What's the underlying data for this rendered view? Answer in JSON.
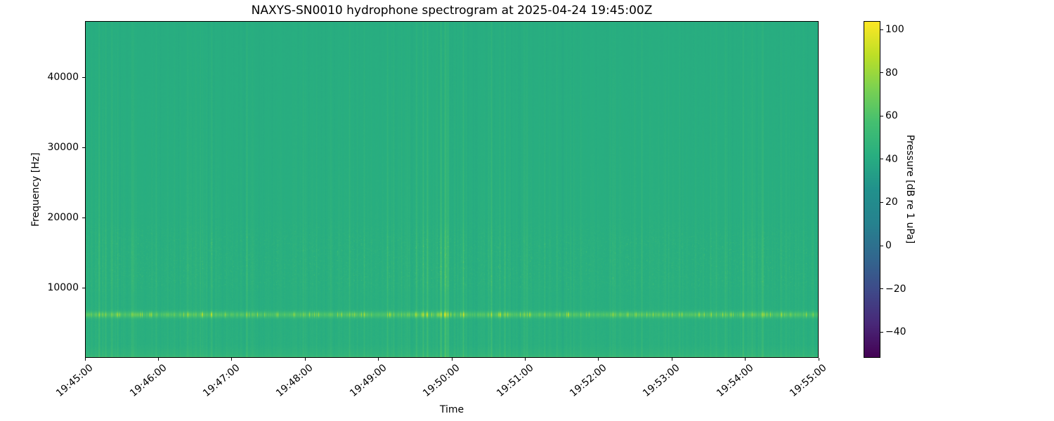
{
  "figure": {
    "title": "NAXYS-SN0010 hydrophone spectrogram at 2025-04-24 19:45:00Z",
    "xlabel": "Time",
    "ylabel": "Frequency [Hz]",
    "colorbar_label": "Pressure [dB re 1 uPa]",
    "background_color": "#ffffff",
    "spine_color": "#000000"
  },
  "chart_data": {
    "type": "heatmap",
    "subtype": "spectrogram",
    "title": "NAXYS-SN0010 hydrophone spectrogram at 2025-04-24 19:45:00Z",
    "xlabel": "Time",
    "ylabel": "Frequency [Hz]",
    "colorbar_label": "Pressure [dB re 1 uPa]",
    "colormap": "viridis",
    "grid": false,
    "time_range": [
      "19:45:00",
      "19:55:00"
    ],
    "date": "2025-04-24",
    "x_tick_labels": [
      "19:45:00",
      "19:46:00",
      "19:47:00",
      "19:48:00",
      "19:49:00",
      "19:50:00",
      "19:51:00",
      "19:52:00",
      "19:53:00",
      "19:54:00",
      "19:55:00"
    ],
    "x_tick_rotation_deg": 40,
    "freq_range_hz": [
      0,
      48000
    ],
    "y_ticks_hz": [
      10000,
      20000,
      30000,
      40000
    ],
    "y_tick_labels": [
      "10000",
      "20000",
      "30000",
      "40000"
    ],
    "value_range_db": [
      -52,
      104
    ],
    "colorbar_ticks_db": [
      100,
      80,
      60,
      40,
      20,
      0,
      -20,
      -40
    ],
    "colorbar_tick_labels": [
      "100",
      "80",
      "60",
      "40",
      "20",
      "0",
      "−20",
      "−40"
    ],
    "viridis_anchors": [
      "#440154",
      "#482878",
      "#3e4a89",
      "#31688e",
      "#26828e",
      "#21918c",
      "#28ae80",
      "#44bf70",
      "#7ad151",
      "#bddf26",
      "#fde725"
    ],
    "render_hints": {
      "background_db": 41,
      "background_color_approx": "#26a97e",
      "tonal_band_hz": 6150,
      "tonal_band_sigma_hz": 300,
      "tonal_band_boost_db": 15,
      "speckle_band_hz": [
        10500,
        16800
      ],
      "low_freq_edge_boost_db": 8,
      "transient_max_boost_db": 18,
      "description": "Mostly uniform ~41-45 dB green background; bright tonal band near 6 kHz with time-varying yellow-green peaks up to ~90 dB; speckled elevated band 11-17 kHz; faint broadband vertical transient striations across all frequencies, stronger below 8 kHz; slightly brighter strip at lowest frequencies."
    }
  }
}
